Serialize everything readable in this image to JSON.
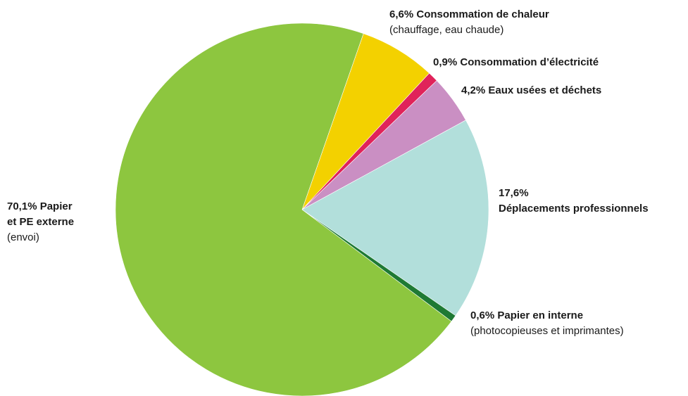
{
  "chart_data": {
    "type": "pie",
    "title": "",
    "start_angle_deg": 19.2,
    "direction": "clockwise",
    "slices": [
      {
        "key": "chaleur",
        "value": 6.6,
        "color": "#f3d100",
        "label_bold": "6,6% Consommation de chaleur",
        "label_sub": "(chauffage, eau chaude)"
      },
      {
        "key": "electricite",
        "value": 0.9,
        "color": "#e0235a",
        "label_bold": "0,9% Consommation d’électricité",
        "label_sub": ""
      },
      {
        "key": "eaux",
        "value": 4.2,
        "color": "#ca8fc3",
        "label_bold": "4,2% Eaux usées et déchets",
        "label_sub": ""
      },
      {
        "key": "deplacements",
        "value": 17.6,
        "color": "#b2dfdb",
        "label_bold": "17,6%",
        "label_bold2": "Déplacements professionnels",
        "label_sub": ""
      },
      {
        "key": "papier_interne",
        "value": 0.6,
        "color": "#1e7a34",
        "label_bold": "0,6% Papier en interne",
        "label_sub": "(photocopieuses et imprimantes)"
      },
      {
        "key": "papier_externe",
        "value": 70.1,
        "color": "#8dc63f",
        "label_bold": "70,1% Papier",
        "label_bold2": "et PE externe",
        "label_sub": "(envoi)"
      }
    ]
  }
}
